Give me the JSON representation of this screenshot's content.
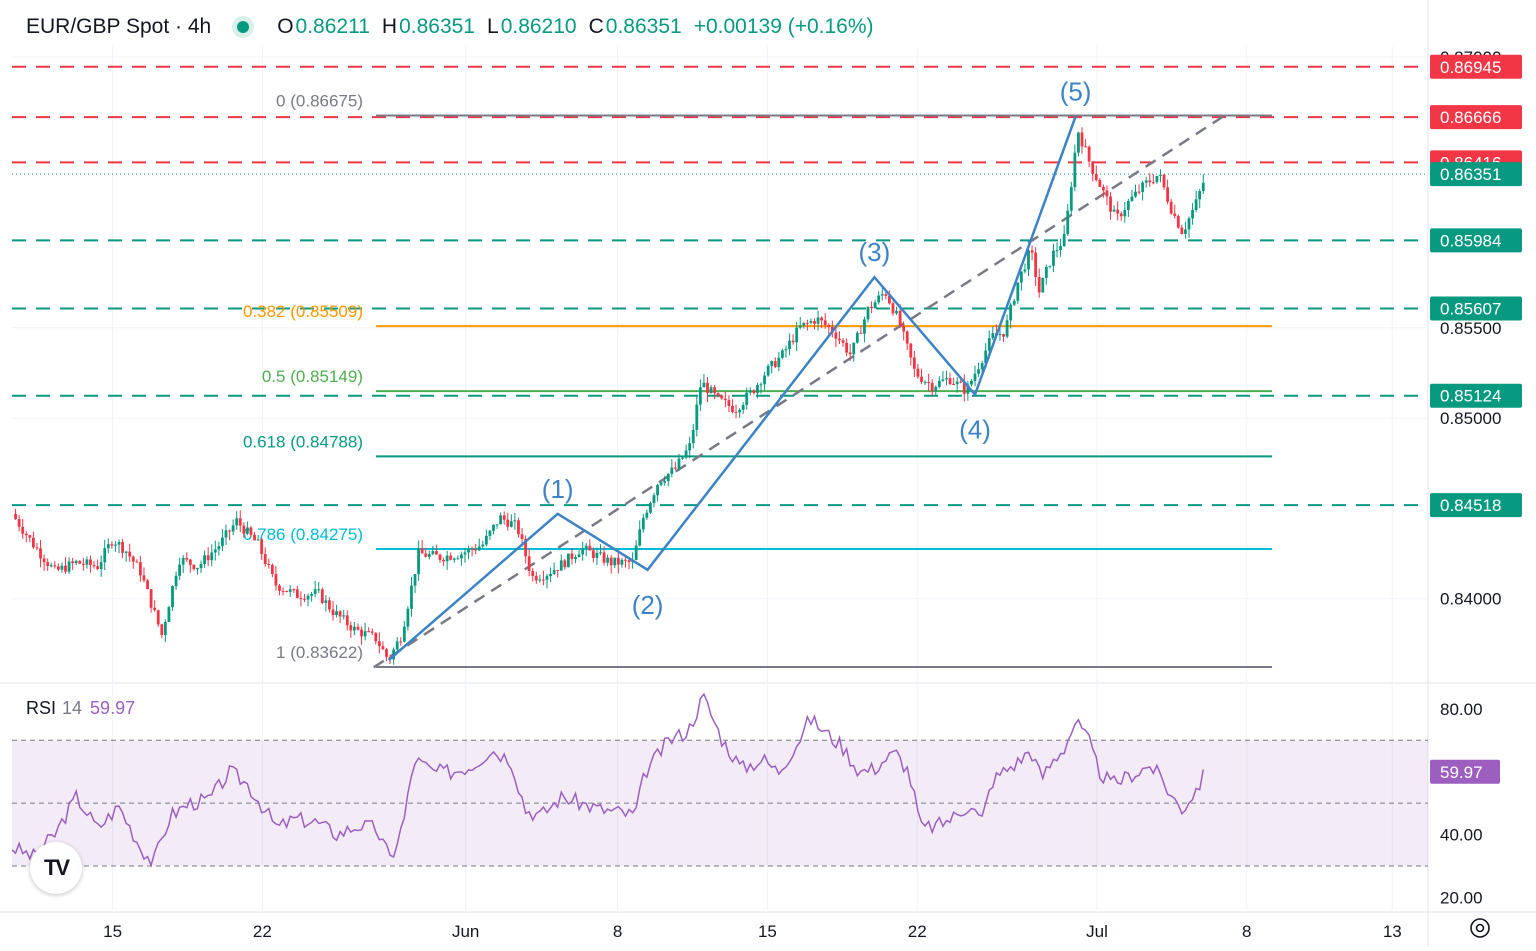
{
  "header": {
    "symbol": "EUR/GBP Spot · 4h",
    "status_color": "#089981",
    "open_label": "O",
    "open": "0.86211",
    "high_label": "H",
    "high": "0.86351",
    "low_label": "L",
    "low": "0.86210",
    "close_label": "C",
    "close": "0.86351",
    "change": "+0.00139 (+0.16%)"
  },
  "rsi_header": {
    "name": "RSI",
    "period": "14",
    "value": "59.97"
  },
  "chart_data": [
    {
      "type": "candlestick",
      "title": "EUR/GBP Spot · 4h",
      "x_ticks": [
        "15",
        "22",
        "Jun",
        "8",
        "15",
        "22",
        "Jul",
        "8",
        "13"
      ],
      "y_ticks": [
        "0.84000",
        "0.85000",
        "0.85500",
        "0.87000"
      ],
      "ylim": [
        0.8355,
        0.8706
      ],
      "last_price": 0.86351,
      "horizontal_levels": [
        {
          "value": 0.86945,
          "label": "0.86945",
          "style": "dashed",
          "color": "#f23645"
        },
        {
          "value": 0.86666,
          "label": "0.86666",
          "style": "dashed",
          "color": "#f23645"
        },
        {
          "value": 0.86416,
          "label": "0.86416",
          "style": "dashed",
          "color": "#f23645"
        },
        {
          "value": 0.86351,
          "label": "0.86351",
          "style": "dotted",
          "color": "#089981"
        },
        {
          "value": 0.85984,
          "label": "0.85984",
          "style": "dashed",
          "color": "#089981"
        },
        {
          "value": 0.85607,
          "label": "0.85607",
          "style": "dashed",
          "color": "#089981"
        },
        {
          "value": 0.85124,
          "label": "0.85124",
          "style": "dashed",
          "color": "#089981"
        },
        {
          "value": 0.84518,
          "label": "0.84518",
          "style": "dashed",
          "color": "#089981"
        }
      ],
      "fibonacci": [
        {
          "ratio": "0",
          "value": 0.86675,
          "label": "0 (0.86675)",
          "color": "#787b86"
        },
        {
          "ratio": "0.382",
          "value": 0.85509,
          "label": "0.382 (0.85509)",
          "color": "#ff9800"
        },
        {
          "ratio": "0.5",
          "value": 0.85149,
          "label": "0.5 (0.85149)",
          "color": "#4caf50"
        },
        {
          "ratio": "0.618",
          "value": 0.84788,
          "label": "0.618 (0.84788)",
          "color": "#089981"
        },
        {
          "ratio": "0.786",
          "value": 0.84275,
          "label": "0.786 (0.84275)",
          "color": "#00bcd4"
        },
        {
          "ratio": "1",
          "value": 0.83622,
          "label": "1 (0.83622)",
          "color": "#787b86"
        }
      ],
      "elliott_waves": [
        {
          "label": "(1)",
          "x_day": 25.5,
          "value": 0.8447
        },
        {
          "label": "(2)",
          "x_day": 29.7,
          "value": 0.8416
        },
        {
          "label": "(3)",
          "x_day": 40.3,
          "value": 0.8578
        },
        {
          "label": "(4)",
          "x_day": 45.0,
          "value": 0.8513
        },
        {
          "label": "(5)",
          "x_day": 49.7,
          "value": 0.8667
        }
      ],
      "wave_color": "#3d83c6",
      "bull_color": "#089981",
      "bear_color": "#f23645",
      "trend_line": [
        {
          "x_day": 16.9,
          "value": 0.8362
        },
        {
          "x_day": 56.6,
          "value": 0.8667
        }
      ],
      "price_path": [
        [
          0,
          0.8447
        ],
        [
          1.0,
          0.843
        ],
        [
          2.0,
          0.8415
        ],
        [
          3.0,
          0.842
        ],
        [
          4.0,
          0.8418
        ],
        [
          4.7,
          0.8433
        ],
        [
          5.3,
          0.8427
        ],
        [
          6.0,
          0.8415
        ],
        [
          7.0,
          0.838
        ],
        [
          7.8,
          0.8422
        ],
        [
          8.7,
          0.8418
        ],
        [
          9.7,
          0.843
        ],
        [
          10.5,
          0.8443
        ],
        [
          11.5,
          0.843
        ],
        [
          12.3,
          0.8408
        ],
        [
          13.3,
          0.8402
        ],
        [
          14.3,
          0.8403
        ],
        [
          15.0,
          0.8393
        ],
        [
          16.0,
          0.8383
        ],
        [
          17.0,
          0.8378
        ],
        [
          17.6,
          0.8366
        ],
        [
          18.2,
          0.838
        ],
        [
          19.0,
          0.8425
        ],
        [
          20.0,
          0.8423
        ],
        [
          21.0,
          0.8425
        ],
        [
          22.0,
          0.843
        ],
        [
          22.8,
          0.8445
        ],
        [
          23.6,
          0.844
        ],
        [
          24.3,
          0.8412
        ],
        [
          25.0,
          0.8414
        ],
        [
          25.8,
          0.842
        ],
        [
          26.6,
          0.8428
        ],
        [
          27.3,
          0.8424
        ],
        [
          28.0,
          0.842
        ],
        [
          29.0,
          0.842
        ],
        [
          29.5,
          0.8445
        ],
        [
          30.2,
          0.8465
        ],
        [
          31.0,
          0.8472
        ],
        [
          31.7,
          0.8485
        ],
        [
          32.2,
          0.852
        ],
        [
          33.0,
          0.851
        ],
        [
          33.8,
          0.8505
        ],
        [
          34.6,
          0.8515
        ],
        [
          35.2,
          0.8525
        ],
        [
          36.0,
          0.8535
        ],
        [
          36.8,
          0.855
        ],
        [
          37.6,
          0.8555
        ],
        [
          38.4,
          0.8548
        ],
        [
          39.2,
          0.8535
        ],
        [
          40.0,
          0.856
        ],
        [
          40.8,
          0.857
        ],
        [
          41.4,
          0.8555
        ],
        [
          42.2,
          0.8525
        ],
        [
          43.0,
          0.8518
        ],
        [
          43.8,
          0.8522
        ],
        [
          44.6,
          0.8515
        ],
        [
          45.2,
          0.853
        ],
        [
          45.8,
          0.8545
        ],
        [
          46.4,
          0.8548
        ],
        [
          47.0,
          0.8575
        ],
        [
          47.6,
          0.8593
        ],
        [
          48.0,
          0.857
        ],
        [
          48.6,
          0.859
        ],
        [
          49.2,
          0.86
        ],
        [
          49.8,
          0.866
        ],
        [
          50.4,
          0.864
        ],
        [
          51.0,
          0.8625
        ],
        [
          51.6,
          0.861
        ],
        [
          52.2,
          0.862
        ],
        [
          53.0,
          0.863
        ],
        [
          53.6,
          0.8635
        ],
        [
          54.2,
          0.8615
        ],
        [
          54.7,
          0.8603
        ],
        [
          55.3,
          0.8618
        ],
        [
          55.8,
          0.8635
        ]
      ]
    },
    {
      "type": "line",
      "title": "RSI 14",
      "x_ticks": [
        "15",
        "22",
        "Jun",
        "8",
        "15",
        "22",
        "Jul",
        "8",
        "13"
      ],
      "y_ticks": [
        "20.00",
        "40.00",
        "80.00"
      ],
      "ylim": [
        16,
        86
      ],
      "bands": [
        30,
        50,
        70
      ],
      "band_fill": "#9c5fc0",
      "line_color": "#9c5fc0",
      "last_value": 59.97,
      "series": [
        [
          0,
          36
        ],
        [
          1,
          33
        ],
        [
          2,
          40
        ],
        [
          3,
          52
        ],
        [
          4,
          42
        ],
        [
          5,
          49
        ],
        [
          6,
          36
        ],
        [
          6.6,
          31
        ],
        [
          7.4,
          46
        ],
        [
          8.3,
          50
        ],
        [
          9.2,
          51
        ],
        [
          10.2,
          60
        ],
        [
          11.0,
          56
        ],
        [
          11.6,
          50
        ],
        [
          12.4,
          42
        ],
        [
          13.2,
          45
        ],
        [
          14.2,
          44
        ],
        [
          15.2,
          40
        ],
        [
          16.2,
          43
        ],
        [
          17.0,
          42
        ],
        [
          17.7,
          32
        ],
        [
          18.3,
          44
        ],
        [
          18.8,
          64
        ],
        [
          19.7,
          60
        ],
        [
          20.6,
          60
        ],
        [
          21.5,
          62
        ],
        [
          22.4,
          67
        ],
        [
          23.3,
          64
        ],
        [
          24.0,
          48
        ],
        [
          24.7,
          46
        ],
        [
          25.7,
          52
        ],
        [
          26.6,
          50
        ],
        [
          27.5,
          48
        ],
        [
          28.5,
          47
        ],
        [
          29.1,
          46
        ],
        [
          29.6,
          60
        ],
        [
          30.7,
          70
        ],
        [
          31.6,
          73
        ],
        [
          32.3,
          84
        ],
        [
          33.2,
          70
        ],
        [
          34.1,
          61
        ],
        [
          35.1,
          64
        ],
        [
          35.8,
          60
        ],
        [
          36.6,
          68
        ],
        [
          37.3,
          77
        ],
        [
          38.1,
          72
        ],
        [
          38.8,
          68
        ],
        [
          39.6,
          60
        ],
        [
          40.3,
          61
        ],
        [
          40.8,
          64
        ],
        [
          41.3,
          66
        ],
        [
          41.9,
          60
        ],
        [
          42.5,
          42
        ],
        [
          43.3,
          43
        ],
        [
          44.1,
          46
        ],
        [
          44.8,
          50
        ],
        [
          45.3,
          44
        ],
        [
          45.8,
          57
        ],
        [
          46.3,
          60
        ],
        [
          47.0,
          63
        ],
        [
          47.6,
          67
        ],
        [
          48.1,
          58
        ],
        [
          48.7,
          64
        ],
        [
          49.2,
          68
        ],
        [
          49.7,
          76
        ],
        [
          50.3,
          70
        ],
        [
          50.8,
          60
        ],
        [
          51.4,
          56
        ],
        [
          52.0,
          58
        ],
        [
          52.6,
          60
        ],
        [
          53.2,
          62
        ],
        [
          53.7,
          58
        ],
        [
          54.2,
          52
        ],
        [
          54.7,
          48
        ],
        [
          55.3,
          54
        ],
        [
          55.8,
          60
        ]
      ]
    }
  ]
}
